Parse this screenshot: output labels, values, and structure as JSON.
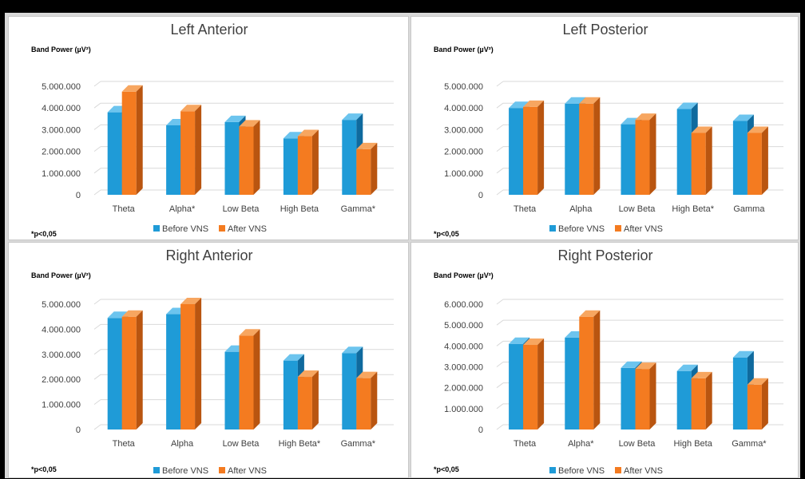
{
  "colors": {
    "before_front": "#1f9bd7",
    "before_top": "#6cc4ee",
    "before_side": "#0f6a9e",
    "after_front": "#f47b20",
    "after_top": "#f7a660",
    "after_side": "#b95510"
  },
  "chart_data": [
    {
      "type": "bar",
      "title": "Left Anterior",
      "ylabel": "Band Power (µV²)",
      "categories": [
        "Theta",
        "Alpha*",
        "Low Beta",
        "High Beta",
        "Gamma*"
      ],
      "series": [
        {
          "name": "Before VNS",
          "values": [
            3800000,
            3200000,
            3350000,
            2600000,
            3450000
          ]
        },
        {
          "name": "After VNS",
          "values": [
            4750000,
            3850000,
            3150000,
            2700000,
            2100000
          ]
        }
      ],
      "ylim": [
        0,
        5000000
      ],
      "yticks": [
        "0",
        "1.000.000",
        "2.000.000",
        "3.000.000",
        "4.000.000",
        "5.000.000"
      ],
      "legend_position": "bottom",
      "note": "*p<0,05",
      "grid": true
    },
    {
      "type": "bar",
      "title": "Left Posterior",
      "ylabel": "Band Power (µV²)",
      "categories": [
        "Theta",
        "Alpha",
        "Low Beta",
        "High Beta*",
        "Gamma"
      ],
      "series": [
        {
          "name": "Before VNS",
          "values": [
            4000000,
            4200000,
            3250000,
            3950000,
            3400000
          ]
        },
        {
          "name": "After VNS",
          "values": [
            4050000,
            4200000,
            3450000,
            2850000,
            2850000
          ]
        }
      ],
      "ylim": [
        0,
        5000000
      ],
      "yticks": [
        "0",
        "1.000.000",
        "2.000.000",
        "3.000.000",
        "4.000.000",
        "5.000.000"
      ],
      "legend_position": "bottom",
      "note": "*p<0,05",
      "grid": true
    },
    {
      "type": "bar",
      "title": "Right Anterior",
      "ylabel": "Band Power (µV²)",
      "categories": [
        "Theta",
        "Alpha",
        "Low Beta",
        "High Beta*",
        "Gamma*"
      ],
      "series": [
        {
          "name": "Before VNS",
          "values": [
            4450000,
            4600000,
            3100000,
            2750000,
            3050000
          ]
        },
        {
          "name": "After VNS",
          "values": [
            4500000,
            5000000,
            3750000,
            2100000,
            2050000
          ]
        }
      ],
      "ylim": [
        0,
        5000000
      ],
      "yticks": [
        "0",
        "1.000.000",
        "2.000.000",
        "3.000.000",
        "4.000.000",
        "5.000.000"
      ],
      "legend_position": "bottom",
      "note": "*p<0,05",
      "grid": true
    },
    {
      "type": "bar",
      "title": "Right Posterior",
      "ylabel": "Band Power (µV²)",
      "categories": [
        "Theta",
        "Alpha*",
        "Low Beta",
        "High Beta",
        "Gamma*"
      ],
      "series": [
        {
          "name": "Before VNS",
          "values": [
            4100000,
            4400000,
            2950000,
            2800000,
            3450000
          ]
        },
        {
          "name": "After VNS",
          "values": [
            4050000,
            5400000,
            2900000,
            2450000,
            2150000
          ]
        }
      ],
      "ylim": [
        0,
        6000000
      ],
      "yticks": [
        "0",
        "1.000.000",
        "2.000.000",
        "3.000.000",
        "4.000.000",
        "5.000.000",
        "6.000.000"
      ],
      "legend_position": "bottom",
      "note": "*p<0,05",
      "grid": true
    }
  ]
}
